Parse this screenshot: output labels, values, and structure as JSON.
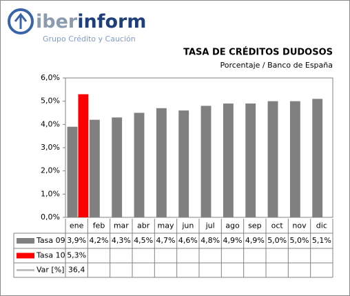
{
  "header": {
    "brand_prefix": "iber",
    "brand_suffix": "inform",
    "tagline": "Grupo Crédito y Caución"
  },
  "chart_data": {
    "type": "bar",
    "title": "TASA DE CRÉDITOS DUDOSOS",
    "subtitle": "Porcentaje / Banco de España",
    "categories": [
      "ene",
      "feb",
      "mar",
      "abr",
      "may",
      "jun",
      "jul",
      "ago",
      "sep",
      "oct",
      "nov",
      "dic"
    ],
    "series": [
      {
        "name": "Tasa 09",
        "color": "#808080",
        "values": [
          3.9,
          4.2,
          4.3,
          4.5,
          4.7,
          4.6,
          4.8,
          4.9,
          4.9,
          5.0,
          5.0,
          5.1
        ],
        "value_labels": [
          "3,9%",
          "4,2%",
          "4,3%",
          "4,5%",
          "4,7%",
          "4,6%",
          "4,8%",
          "4,9%",
          "4,9%",
          "5,0%",
          "5,0%",
          "5,1%"
        ]
      },
      {
        "name": "Tasa 10",
        "color": "#ff0000",
        "values": [
          5.3,
          null,
          null,
          null,
          null,
          null,
          null,
          null,
          null,
          null,
          null,
          null
        ],
        "value_labels": [
          "5,3%",
          null,
          null,
          null,
          null,
          null,
          null,
          null,
          null,
          null,
          null,
          null
        ]
      },
      {
        "name": "Var [%]",
        "type": "line",
        "color": "#c0c0c0",
        "values": [
          36.4,
          null,
          null,
          null,
          null,
          null,
          null,
          null,
          null,
          null,
          null,
          null
        ],
        "value_labels": [
          "36,4",
          null,
          null,
          null,
          null,
          null,
          null,
          null,
          null,
          null,
          null,
          null
        ]
      }
    ],
    "ylim": [
      0,
      6
    ],
    "yticks": [
      {
        "value": 0,
        "label": "0,0%"
      },
      {
        "value": 1,
        "label": "1,0%"
      },
      {
        "value": 2,
        "label": "2,0%"
      },
      {
        "value": 3,
        "label": "3,0%"
      },
      {
        "value": 4,
        "label": "4,0%"
      },
      {
        "value": 5,
        "label": "5,0%"
      },
      {
        "value": 6,
        "label": "6,0%"
      }
    ],
    "grid": false
  }
}
